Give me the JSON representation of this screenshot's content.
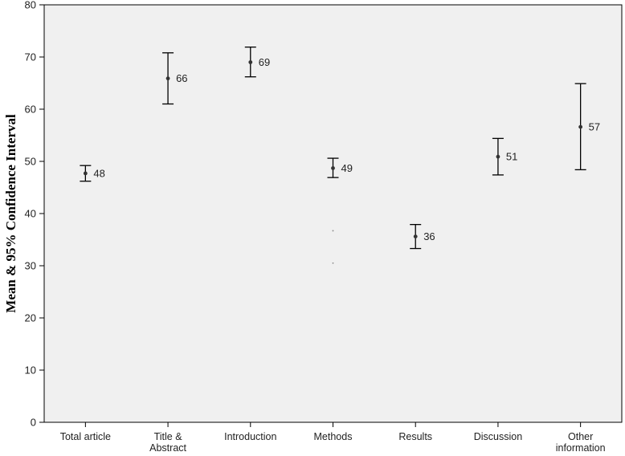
{
  "chart_data": {
    "type": "errorbar",
    "ylabel": "Mean & 95% Confidence Interval",
    "xlabel": "",
    "ylim": [
      0,
      80
    ],
    "yticks": [
      0,
      10,
      20,
      30,
      40,
      50,
      60,
      70,
      80
    ],
    "grid": false,
    "categories": [
      [
        "Total article"
      ],
      [
        "Title &",
        "Abstract"
      ],
      [
        "Introduction"
      ],
      [
        "Methods"
      ],
      [
        "Results"
      ],
      [
        "Discussion"
      ],
      [
        "Other",
        "information"
      ]
    ],
    "points": [
      {
        "mean": 47.7,
        "lower": 46.2,
        "upper": 49.2,
        "label": "48"
      },
      {
        "mean": 65.9,
        "lower": 61.0,
        "upper": 70.8,
        "label": "66"
      },
      {
        "mean": 69.0,
        "lower": 66.2,
        "upper": 71.9,
        "label": "69"
      },
      {
        "mean": 48.7,
        "lower": 46.9,
        "upper": 50.6,
        "label": "49"
      },
      {
        "mean": 35.6,
        "lower": 33.3,
        "upper": 37.9,
        "label": "36"
      },
      {
        "mean": 50.9,
        "lower": 47.4,
        "upper": 54.4,
        "label": "51"
      },
      {
        "mean": 56.6,
        "lower": 48.4,
        "upper": 64.9,
        "label": "57"
      }
    ],
    "stray_marks": [
      {
        "category_index": 3,
        "value": 36.7
      },
      {
        "category_index": 3,
        "value": 30.5
      }
    ],
    "colors": {
      "plot_background": "#f0f0f0",
      "axis": "#000000",
      "marker": "#333333"
    }
  }
}
